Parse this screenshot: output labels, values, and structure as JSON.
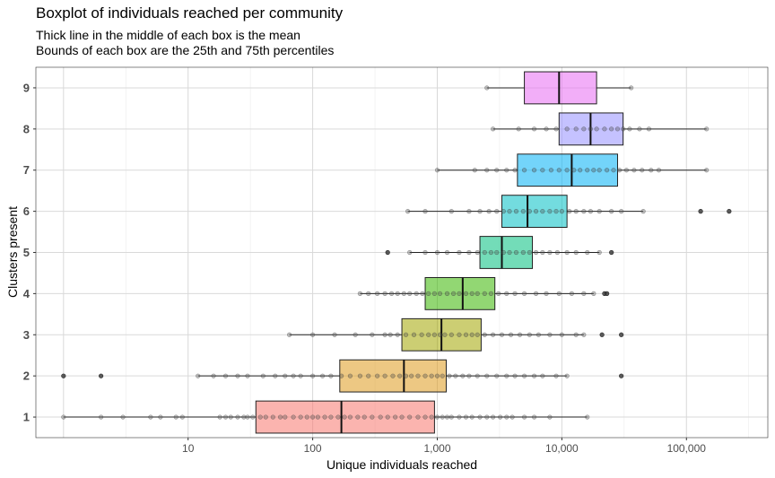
{
  "chart_data": {
    "type": "boxplot",
    "orientation": "horizontal",
    "title": "Boxplot of individuals reached per community",
    "subtitle_lines": [
      "Thick line in the middle of each box is the mean",
      "Bounds of each box are the 25th and 75th percentiles"
    ],
    "xlabel": "Unique individuals reached",
    "ylabel": "Clusters present",
    "x_scale": "log10",
    "xlim": [
      0.6,
      450000
    ],
    "x_ticks": [
      {
        "value": 10,
        "label": "10"
      },
      {
        "value": 100,
        "label": "100"
      },
      {
        "value": 1000,
        "label": "1,000"
      },
      {
        "value": 10000,
        "label": "10,000"
      },
      {
        "value": 100000,
        "label": "100,000"
      }
    ],
    "grid": true,
    "legend": "none",
    "groups": [
      {
        "category": "1",
        "color": "#F8766D",
        "whisker_low": 1,
        "q1": 35,
        "center": 170,
        "q3": 950,
        "whisker_high": 16000,
        "points": [
          1,
          2,
          3,
          5,
          6,
          8,
          9,
          18,
          20,
          22,
          25,
          28,
          30,
          33,
          38,
          42,
          48,
          55,
          60,
          70,
          80,
          90,
          100,
          110,
          125,
          140,
          160,
          180,
          200,
          230,
          260,
          300,
          350,
          400,
          460,
          520,
          600,
          700,
          800,
          900,
          1000,
          1100,
          1200,
          1300,
          1500,
          1700,
          1900,
          2200,
          2500,
          2800,
          3200,
          3600,
          4000,
          5000,
          6000,
          8000,
          16000
        ]
      },
      {
        "category": "2",
        "color": "#DE9B1D",
        "whisker_low": 12,
        "q1": 165,
        "center": 540,
        "q3": 1180,
        "whisker_high": 11000,
        "outliers": [
          1,
          2,
          30000
        ],
        "points": [
          12,
          16,
          20,
          25,
          30,
          40,
          50,
          60,
          70,
          80,
          100,
          120,
          140,
          170,
          200,
          240,
          280,
          330,
          380,
          440,
          500,
          560,
          620,
          700,
          800,
          900,
          1000,
          1100,
          1250,
          1400,
          1600,
          1800,
          2100,
          2500,
          3000,
          3600,
          4200,
          5000,
          6000,
          7000,
          9000,
          11000
        ]
      },
      {
        "category": "3",
        "color": "#A3A500",
        "whisker_low": 65,
        "q1": 520,
        "center": 1080,
        "q3": 2250,
        "whisker_high": 15000,
        "outliers": [
          21000,
          30000
        ],
        "points": [
          65,
          100,
          150,
          220,
          300,
          380,
          420,
          480,
          560,
          650,
          750,
          850,
          950,
          1050,
          1150,
          1300,
          1500,
          1700,
          1900,
          2100,
          2400,
          2800,
          3300,
          3900,
          4600,
          5500,
          6500,
          8000,
          10000,
          13000,
          15000
        ]
      },
      {
        "category": "4",
        "color": "#39B600",
        "whisker_low": 240,
        "q1": 800,
        "center": 1600,
        "q3": 2900,
        "whisker_high": 18000,
        "outliers": [
          22000,
          23000
        ],
        "points": [
          240,
          280,
          330,
          380,
          430,
          480,
          540,
          600,
          680,
          760,
          850,
          950,
          1050,
          1200,
          1350,
          1500,
          1700,
          1900,
          2100,
          2400,
          2700,
          3100,
          3600,
          4200,
          5000,
          6200,
          7500,
          9500,
          12000,
          15000,
          18000
        ]
      },
      {
        "category": "5",
        "color": "#00BF7D",
        "whisker_low": 600,
        "q1": 2200,
        "center": 3300,
        "q3": 5800,
        "whisker_high": 20000,
        "outliers": [
          400,
          25000
        ],
        "points": [
          600,
          800,
          1000,
          1200,
          1500,
          1800,
          2100,
          2400,
          2700,
          3000,
          3400,
          3800,
          4300,
          4900,
          5500,
          6200,
          7000,
          8000,
          9200,
          11000,
          13000,
          16000,
          20000
        ]
      },
      {
        "category": "6",
        "color": "#00BFC4",
        "whisker_low": 580,
        "q1": 3300,
        "center": 5300,
        "q3": 11000,
        "whisker_high": 45000,
        "outliers": [
          130000,
          220000
        ],
        "points": [
          580,
          800,
          1300,
          1800,
          2200,
          2600,
          3000,
          3400,
          3800,
          4300,
          4900,
          5500,
          6200,
          7000,
          8000,
          9000,
          10000,
          11500,
          13000,
          15000,
          17000,
          20000,
          25000,
          30000,
          45000
        ]
      },
      {
        "category": "7",
        "color": "#00B0F6",
        "whisker_low": 1000,
        "q1": 4400,
        "center": 12000,
        "q3": 28000,
        "whisker_high": 145000,
        "points": [
          1000,
          2000,
          2500,
          3000,
          3600,
          4200,
          5000,
          6000,
          7000,
          8200,
          9500,
          11000,
          12500,
          14000,
          16000,
          18000,
          20000,
          23000,
          26000,
          29000,
          33000,
          38000,
          44000,
          52000,
          60000,
          145000
        ]
      },
      {
        "category": "8",
        "color": "#9590FF",
        "whisker_low": 2800,
        "q1": 9500,
        "center": 17000,
        "q3": 31000,
        "whisker_high": 145000,
        "points": [
          2800,
          4500,
          6000,
          7500,
          9000,
          11000,
          13000,
          15000,
          17000,
          19000,
          22000,
          25000,
          28000,
          31000,
          35000,
          42000,
          50000,
          145000
        ]
      },
      {
        "category": "9",
        "color": "#E76BF3",
        "whisker_low": 2500,
        "q1": 5000,
        "center": 9500,
        "q3": 19000,
        "whisker_high": 36000,
        "points": [
          2500,
          36000
        ]
      }
    ]
  }
}
